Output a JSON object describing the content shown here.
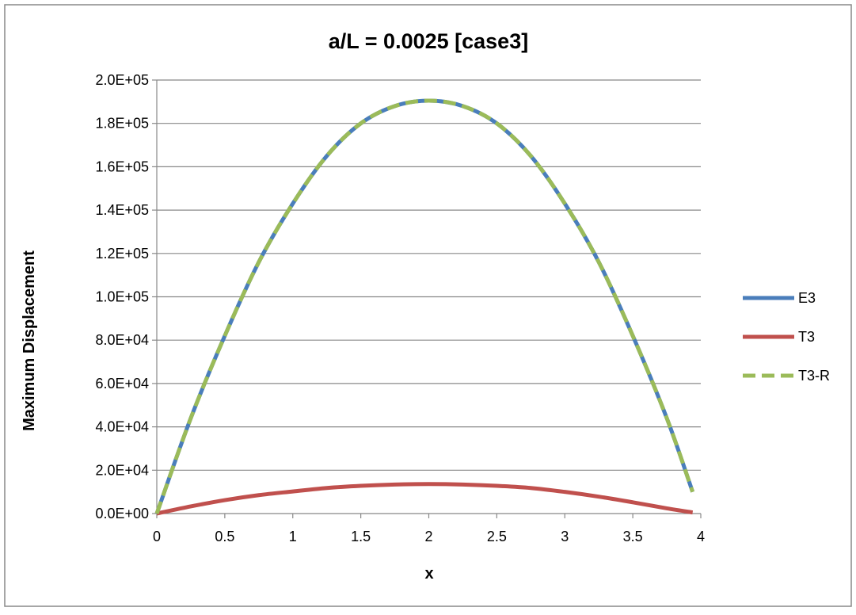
{
  "chart_data": {
    "type": "line",
    "title": "a/L = 0.0025 [case3]",
    "xlabel": "x",
    "ylabel": "Maximum Displacement",
    "xlim": [
      0,
      4
    ],
    "ylim": [
      0,
      200000
    ],
    "x_ticks": [
      "0",
      "0.5",
      "1",
      "1.5",
      "2",
      "2.5",
      "3",
      "3.5",
      "4"
    ],
    "y_ticks": [
      "0.0E+00",
      "2.0E+04",
      "4.0E+04",
      "6.0E+04",
      "8.0E+04",
      "1.0E+05",
      "1.2E+05",
      "1.4E+05",
      "1.6E+05",
      "1.8E+05",
      "2.0E+05"
    ],
    "grid": "horizontal",
    "legend": "right",
    "series": [
      {
        "name": "E3",
        "color": "#4A7EBB",
        "dash": "solid",
        "x": [
          0,
          0.25,
          0.5,
          0.75,
          1.0,
          1.25,
          1.5,
          1.75,
          2.0,
          2.25,
          2.5,
          2.75,
          3.0,
          3.25,
          3.5,
          3.75,
          3.94
        ],
        "y": [
          0,
          44000,
          82000,
          116000,
          143000,
          165000,
          180000,
          188000,
          190500,
          188000,
          180000,
          165000,
          143000,
          116000,
          82000,
          44000,
          10000
        ]
      },
      {
        "name": "T3",
        "color": "#C0504D",
        "dash": "solid",
        "x": [
          0,
          0.25,
          0.5,
          0.75,
          1.0,
          1.25,
          1.5,
          1.75,
          2.0,
          2.25,
          2.5,
          2.75,
          3.0,
          3.25,
          3.5,
          3.75,
          3.94
        ],
        "y": [
          0,
          3300,
          6200,
          8500,
          10200,
          11800,
          12800,
          13400,
          13600,
          13400,
          12800,
          11800,
          10000,
          7800,
          5200,
          2400,
          500
        ]
      },
      {
        "name": "T3-R",
        "color": "#9BBB59",
        "dash": "dashed",
        "x": [
          0,
          0.25,
          0.5,
          0.75,
          1.0,
          1.25,
          1.5,
          1.75,
          2.0,
          2.25,
          2.5,
          2.75,
          3.0,
          3.25,
          3.5,
          3.75,
          3.94
        ],
        "y": [
          0,
          44000,
          82000,
          116000,
          143000,
          165000,
          180000,
          188000,
          190500,
          188000,
          180000,
          165000,
          143000,
          116000,
          82000,
          44000,
          10000
        ]
      }
    ]
  }
}
